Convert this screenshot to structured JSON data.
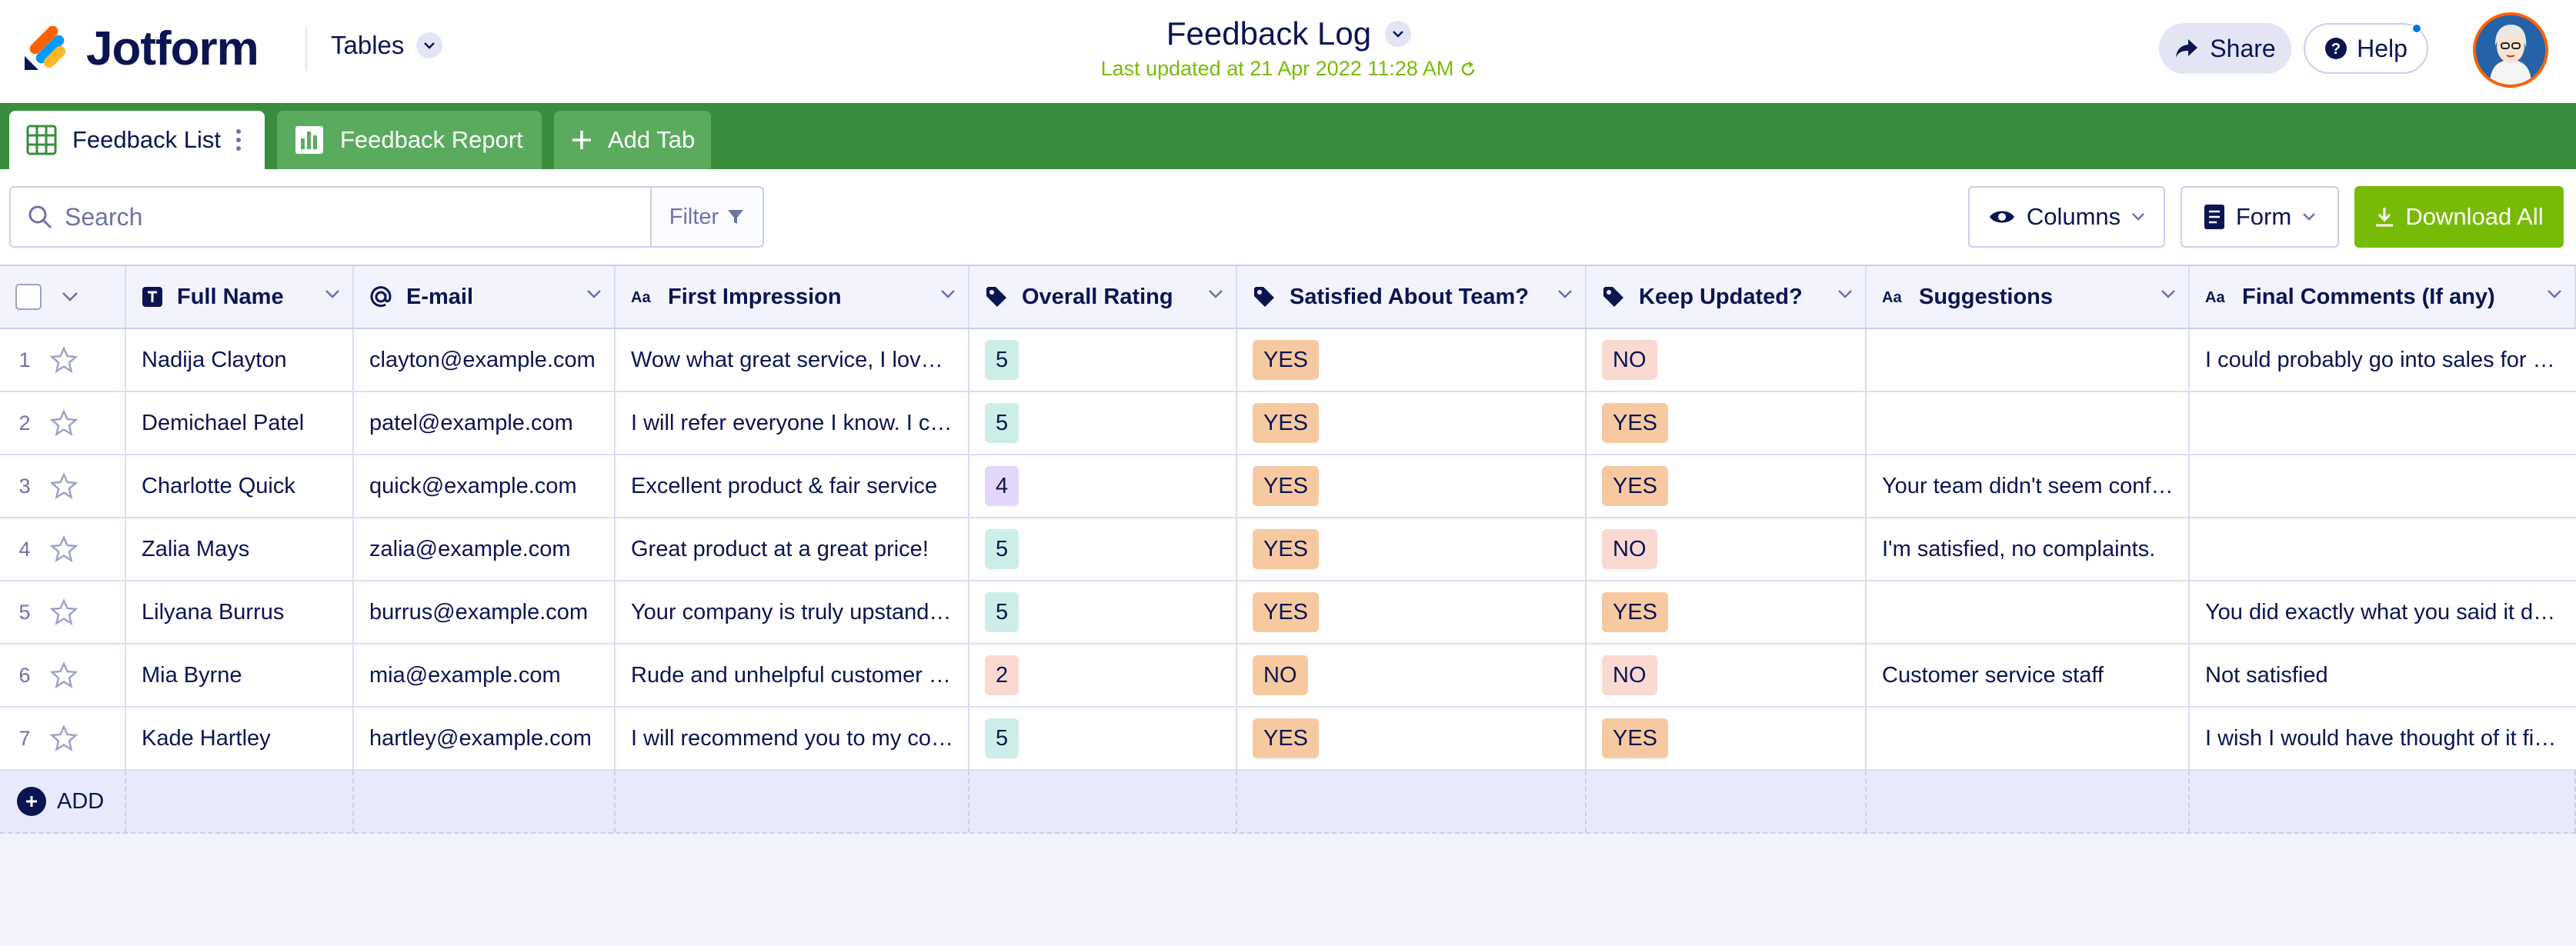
{
  "header": {
    "brand": "Jotform",
    "tables_label": "Tables",
    "title": "Feedback Log",
    "last_updated": "Last updated at 21 Apr 2022 11:28 AM",
    "share_label": "Share",
    "help_label": "Help"
  },
  "tabs": [
    {
      "label": "Feedback List"
    },
    {
      "label": "Feedback Report"
    },
    {
      "label": "Add Tab"
    }
  ],
  "toolbar": {
    "search_placeholder": "Search",
    "filter_label": "Filter",
    "columns_label": "Columns",
    "form_label": "Form",
    "download_label": "Download All"
  },
  "columns": [
    {
      "label": "Full Name",
      "icon": "text-field-icon"
    },
    {
      "label": "E-mail",
      "icon": "at-icon"
    },
    {
      "label": "First Impression",
      "icon": "aa-icon"
    },
    {
      "label": "Overall Rating",
      "icon": "tag-icon"
    },
    {
      "label": "Satisfied About Team?",
      "icon": "tag-icon"
    },
    {
      "label": "Keep Updated?",
      "icon": "tag-icon"
    },
    {
      "label": "Suggestions",
      "icon": "aa-icon"
    },
    {
      "label": "Final Comments (If any)",
      "icon": "aa-icon"
    }
  ],
  "rows": [
    {
      "num": "1",
      "name": "Nadija Clayton",
      "email": "clayton@example.com",
      "impression": "Wow what great service, I love it!",
      "rating": "5",
      "satisfied": "YES",
      "updated": "NO",
      "suggestions": "",
      "comments": "I could probably go into sales for you."
    },
    {
      "num": "2",
      "name": "Demichael Patel",
      "email": "patel@example.com",
      "impression": "I will refer everyone I know. I can't get enough",
      "rating": "5",
      "satisfied": "YES",
      "updated": "YES",
      "suggestions": "",
      "comments": ""
    },
    {
      "num": "3",
      "name": "Charlotte Quick",
      "email": "quick@example.com",
      "impression": "Excellent product & fair service",
      "rating": "4",
      "satisfied": "YES",
      "updated": "YES",
      "suggestions": "Your team didn't seem confident",
      "comments": ""
    },
    {
      "num": "4",
      "name": "Zalia Mays",
      "email": "zalia@example.com",
      "impression": "Great product at a great price!",
      "rating": "5",
      "satisfied": "YES",
      "updated": "NO",
      "suggestions": "I'm satisfied, no complaints.",
      "comments": ""
    },
    {
      "num": "5",
      "name": "Lilyana Burrus",
      "email": "burrus@example.com",
      "impression": "Your company is truly upstanding",
      "rating": "5",
      "satisfied": "YES",
      "updated": "YES",
      "suggestions": "",
      "comments": "You did exactly what you said it does."
    },
    {
      "num": "6",
      "name": "Mia Byrne",
      "email": "mia@example.com",
      "impression": "Rude and unhelpful customer service",
      "rating": "2",
      "satisfied": "NO",
      "updated": "NO",
      "suggestions": "Customer service staff",
      "comments": "Not satisfied"
    },
    {
      "num": "7",
      "name": "Kade Hartley",
      "email": "hartley@example.com",
      "impression": "I will recommend you to my colleagues",
      "rating": "5",
      "satisfied": "YES",
      "updated": "YES",
      "suggestions": "",
      "comments": "I wish I would have thought of it first."
    }
  ],
  "add_row_label": "ADD",
  "colors": {
    "brand_green": "#388e3c",
    "accent_green": "#78bb07",
    "navy": "#0a1551"
  }
}
